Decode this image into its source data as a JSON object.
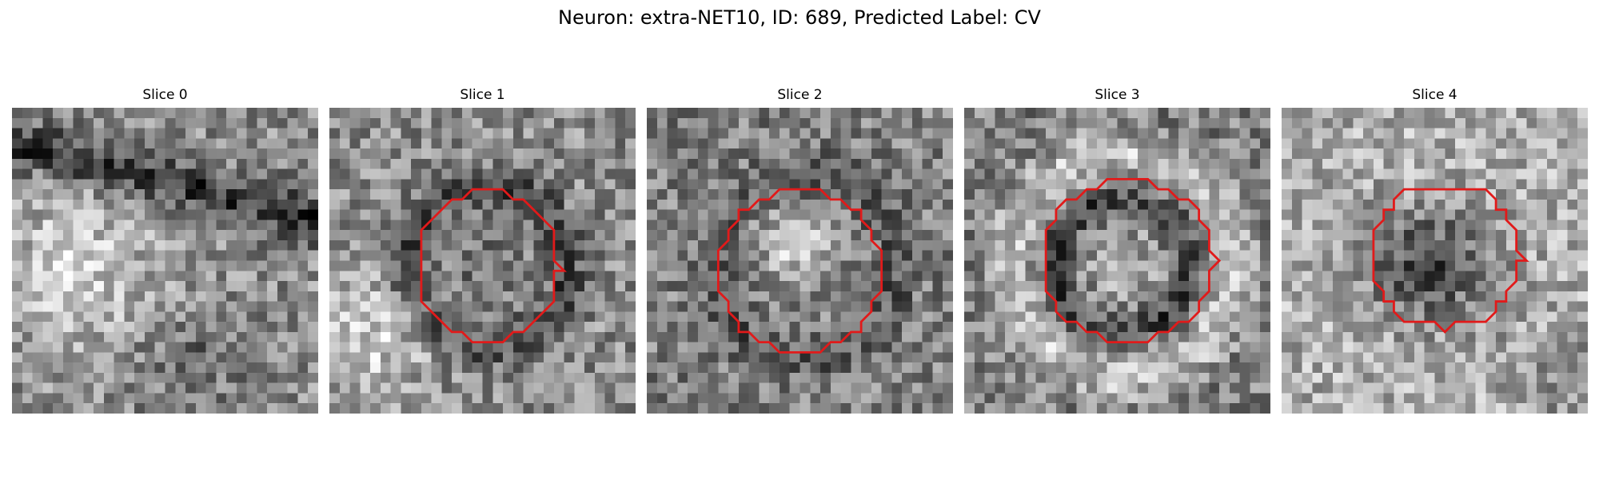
{
  "title": "Neuron: extra-NET10, ID: 689, Predicted Label: CV",
  "panels": [
    {
      "label": "Slice 0",
      "has_roi": false,
      "roi": null,
      "seed": 11,
      "pattern": "band"
    },
    {
      "label": "Slice 1",
      "has_roi": true,
      "roi": {
        "cx": 15.5,
        "cy": 15.5,
        "rx": 7.0,
        "ry": 7.3
      },
      "seed": 23,
      "pattern": "dark-ring"
    },
    {
      "label": "Slice 2",
      "has_roi": true,
      "roi": {
        "cx": 15.0,
        "cy": 16.0,
        "rx": 8.0,
        "ry": 8.0
      },
      "seed": 37,
      "pattern": "bright-center"
    },
    {
      "label": "Slice 3",
      "has_roi": true,
      "roi": {
        "cx": 16.0,
        "cy": 15.0,
        "rx": 8.5,
        "ry": 8.0
      },
      "seed": 41,
      "pattern": "bright-ring"
    },
    {
      "label": "Slice 4",
      "has_roi": true,
      "roi": {
        "cx": 16.0,
        "cy": 14.5,
        "rx": 7.5,
        "ry": 7.0
      },
      "seed": 53,
      "pattern": "dark-center"
    }
  ],
  "roi_color": "#e11a1a",
  "colormap": "gray"
}
